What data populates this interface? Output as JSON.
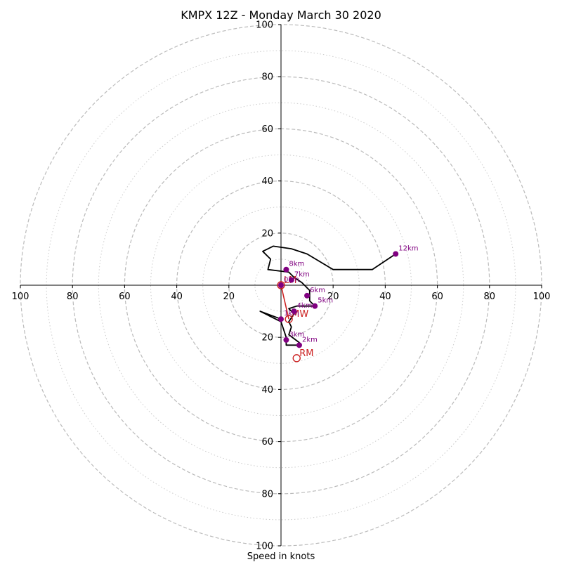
{
  "chart_data": {
    "type": "hodograph",
    "title": "KMPX 12Z - Monday March 30 2020",
    "xlabel": "Speed in knots",
    "range": [
      -100,
      100
    ],
    "ring_labels": [
      "20",
      "40",
      "60",
      "80",
      "100"
    ],
    "x_tick_labels": [
      "100",
      "80",
      "60",
      "40",
      "20",
      "20",
      "40",
      "60",
      "80",
      "100"
    ],
    "y_tick_labels": [
      "100",
      "80",
      "60",
      "40",
      "20",
      "20",
      "40",
      "60",
      "80",
      "100"
    ],
    "dashed_rings": [
      20,
      40,
      60,
      80,
      100
    ],
    "dotted_rings": [
      10,
      30,
      50,
      70,
      90
    ],
    "hodograph_line_color": "#000000",
    "marker_color": "#800080",
    "motion_color": "#cc2222",
    "hodograph_uv": [
      [
        0,
        -13
      ],
      [
        -8,
        -10
      ],
      [
        0,
        -14
      ],
      [
        2,
        -20
      ],
      [
        2,
        -23
      ],
      [
        7,
        -23
      ],
      [
        7,
        -22
      ],
      [
        3,
        -19
      ],
      [
        4,
        -16
      ],
      [
        3,
        -14
      ],
      [
        5,
        -11
      ],
      [
        3,
        -9
      ],
      [
        6,
        -8
      ],
      [
        13,
        -8
      ],
      [
        11,
        -6
      ],
      [
        11,
        -2
      ],
      [
        8,
        1
      ],
      [
        5,
        3
      ],
      [
        3,
        5
      ],
      [
        -5,
        6
      ],
      [
        -4,
        10
      ],
      [
        -7,
        13
      ],
      [
        -3,
        15
      ],
      [
        4,
        14
      ],
      [
        10,
        12
      ],
      [
        20,
        6
      ],
      [
        35,
        6
      ],
      [
        44,
        12
      ]
    ],
    "height_markers": [
      {
        "label": "1km",
        "u": 0,
        "v": -13
      },
      {
        "label": "2km",
        "u": 7,
        "v": -23
      },
      {
        "label": "3km",
        "u": 2,
        "v": -21
      },
      {
        "label": "4km",
        "u": 5,
        "v": -10
      },
      {
        "label": "5km",
        "u": 13,
        "v": -8
      },
      {
        "label": "6km",
        "u": 10,
        "v": -4
      },
      {
        "label": "7km",
        "u": 4,
        "v": 2
      },
      {
        "label": "8km",
        "u": 2,
        "v": 6
      },
      {
        "label": "12km",
        "u": 44,
        "v": 12
      },
      {
        "label": "0km",
        "u": 0,
        "v": 0
      }
    ],
    "storm_motion": [
      {
        "label": "LM",
        "u": 0,
        "v": 0
      },
      {
        "label": "MW",
        "u": 3,
        "v": -13
      },
      {
        "label": "RM",
        "u": 6,
        "v": -28
      }
    ],
    "shear_vector": {
      "from": [
        0,
        0
      ],
      "to": [
        3,
        -13
      ]
    }
  }
}
